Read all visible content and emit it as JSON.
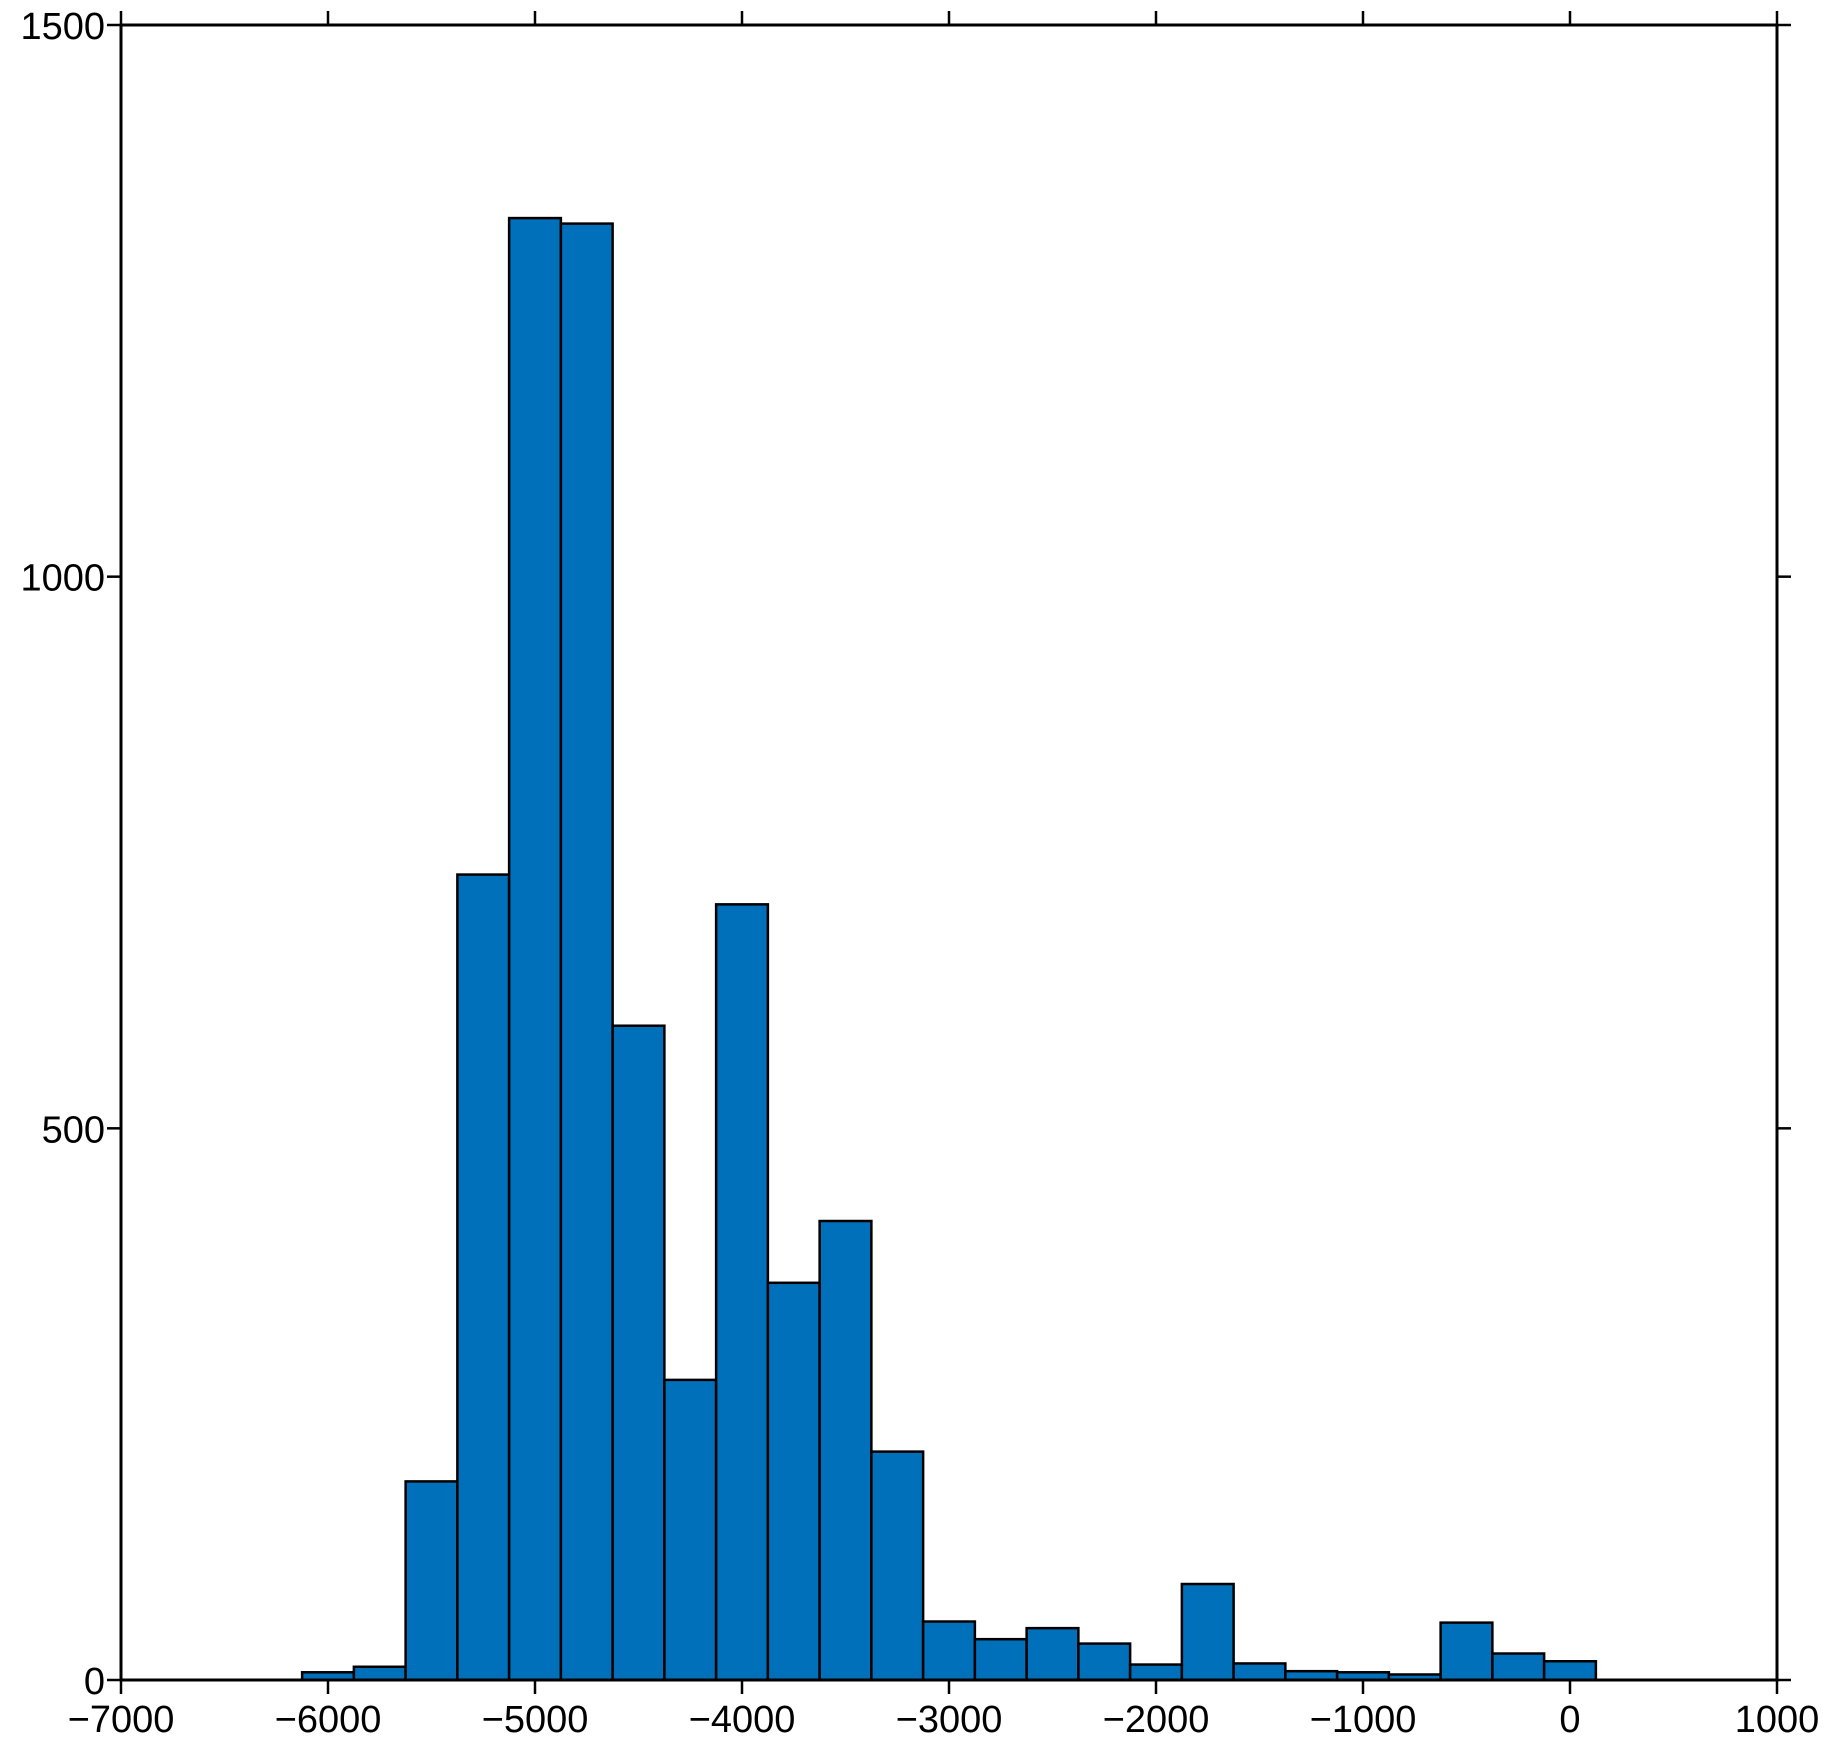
{
  "colors": {
    "bar_fill": "#0070bb",
    "bar_stroke": "#000000",
    "axis": "#000000",
    "background": "#ffffff"
  },
  "chart_data": {
    "type": "bar",
    "title": "",
    "xlabel": "",
    "ylabel": "",
    "xlim": [
      -7000,
      1000
    ],
    "ylim": [
      0,
      1500
    ],
    "bin_width": 250,
    "x_ticks": [
      -7000,
      -6000,
      -5000,
      -4000,
      -3000,
      -2000,
      -1000,
      0,
      1000
    ],
    "x_tick_labels": [
      "−7000",
      "−6000",
      "−5000",
      "−4000",
      "−3000",
      "−2000",
      "−1000",
      "0",
      "1000"
    ],
    "y_ticks": [
      0,
      500,
      1000,
      1500
    ],
    "y_tick_labels": [
      "0",
      "500",
      "1000",
      "1500"
    ],
    "grid": false,
    "legend": "none",
    "bins": [
      {
        "start": -6125,
        "end": -5875,
        "count": 7
      },
      {
        "start": -5875,
        "end": -5625,
        "count": 12
      },
      {
        "start": -5625,
        "end": -5375,
        "count": 180
      },
      {
        "start": -5375,
        "end": -5125,
        "count": 730
      },
      {
        "start": -5125,
        "end": -4875,
        "count": 1325
      },
      {
        "start": -4875,
        "end": -4625,
        "count": 1320
      },
      {
        "start": -4625,
        "end": -4375,
        "count": 593
      },
      {
        "start": -4375,
        "end": -4125,
        "count": 272
      },
      {
        "start": -4125,
        "end": -3875,
        "count": 703
      },
      {
        "start": -3875,
        "end": -3625,
        "count": 360
      },
      {
        "start": -3625,
        "end": -3375,
        "count": 416
      },
      {
        "start": -3375,
        "end": -3125,
        "count": 207
      },
      {
        "start": -3125,
        "end": -2875,
        "count": 53
      },
      {
        "start": -2875,
        "end": -2625,
        "count": 37
      },
      {
        "start": -2625,
        "end": -2375,
        "count": 47
      },
      {
        "start": -2375,
        "end": -2125,
        "count": 33
      },
      {
        "start": -2125,
        "end": -1875,
        "count": 14
      },
      {
        "start": -1875,
        "end": -1625,
        "count": 87
      },
      {
        "start": -1625,
        "end": -1375,
        "count": 15
      },
      {
        "start": -1375,
        "end": -1125,
        "count": 8
      },
      {
        "start": -1125,
        "end": -875,
        "count": 7
      },
      {
        "start": -875,
        "end": -625,
        "count": 5
      },
      {
        "start": -625,
        "end": -375,
        "count": 52
      },
      {
        "start": -375,
        "end": -125,
        "count": 24
      },
      {
        "start": -125,
        "end": 125,
        "count": 17
      }
    ]
  }
}
